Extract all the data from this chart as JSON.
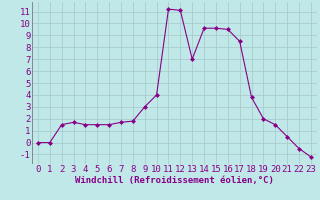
{
  "x": [
    0,
    1,
    2,
    3,
    4,
    5,
    6,
    7,
    8,
    9,
    10,
    11,
    12,
    13,
    14,
    15,
    16,
    17,
    18,
    19,
    20,
    21,
    22,
    23
  ],
  "y": [
    0.0,
    0.0,
    1.5,
    1.7,
    1.5,
    1.5,
    1.5,
    1.7,
    1.8,
    3.0,
    4.0,
    11.2,
    11.1,
    7.0,
    9.6,
    9.6,
    9.5,
    8.5,
    3.8,
    2.0,
    1.5,
    0.5,
    -0.5,
    -1.2
  ],
  "line_color": "#880088",
  "marker": "D",
  "marker_size": 2.0,
  "bg_color": "#c0e8e8",
  "grid_color": "#aacccc",
  "xlabel": "Windchill (Refroidissement éolien,°C)",
  "xlabel_fontsize": 6.5,
  "tick_fontsize": 6.5,
  "ylim": [
    -1.8,
    11.8
  ],
  "yticks": [
    -1,
    0,
    1,
    2,
    3,
    4,
    5,
    6,
    7,
    8,
    9,
    10,
    11
  ],
  "xlim": [
    -0.5,
    23.5
  ],
  "xticks": [
    0,
    1,
    2,
    3,
    4,
    5,
    6,
    7,
    8,
    9,
    10,
    11,
    12,
    13,
    14,
    15,
    16,
    17,
    18,
    19,
    20,
    21,
    22,
    23
  ]
}
